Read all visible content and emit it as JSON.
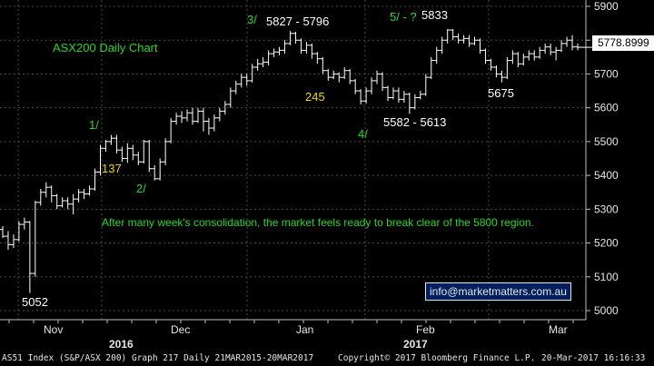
{
  "chart_data": {
    "type": "candlestick",
    "title": "ASX200 Daily Chart",
    "ylim": [
      4980,
      5920
    ],
    "y_ticks": [
      5000,
      5100,
      5200,
      5300,
      5400,
      5500,
      5600,
      5700,
      5800,
      5900
    ],
    "x_month_labels": [
      "Nov",
      "Dec",
      "Jan",
      "Feb",
      "Mar"
    ],
    "x_year_labels": [
      "2016",
      "2017"
    ],
    "last_price": "5778.8999",
    "line_color": "#ffffff",
    "background": "#000000",
    "bars": [
      [
        5240,
        5220,
        5215,
        5250
      ],
      [
        5220,
        5195,
        5180,
        5235
      ],
      [
        5195,
        5210,
        5185,
        5225
      ],
      [
        5210,
        5255,
        5205,
        5265
      ],
      [
        5255,
        5262,
        5240,
        5275
      ],
      [
        5262,
        5110,
        5052,
        5265
      ],
      [
        5110,
        5320,
        5100,
        5325
      ],
      [
        5320,
        5350,
        5310,
        5360
      ],
      [
        5350,
        5365,
        5335,
        5380
      ],
      [
        5365,
        5340,
        5320,
        5370
      ],
      [
        5340,
        5310,
        5300,
        5345
      ],
      [
        5310,
        5325,
        5305,
        5335
      ],
      [
        5325,
        5315,
        5300,
        5335
      ],
      [
        5315,
        5330,
        5285,
        5345
      ],
      [
        5330,
        5350,
        5320,
        5360
      ],
      [
        5350,
        5345,
        5330,
        5360
      ],
      [
        5345,
        5360,
        5340,
        5370
      ],
      [
        5360,
        5410,
        5355,
        5420
      ],
      [
        5410,
        5480,
        5400,
        5490
      ],
      [
        5480,
        5500,
        5470,
        5505
      ],
      [
        5500,
        5510,
        5490,
        5520
      ],
      [
        5510,
        5475,
        5465,
        5520
      ],
      [
        5475,
        5450,
        5440,
        5485
      ],
      [
        5450,
        5480,
        5437,
        5495
      ],
      [
        5480,
        5460,
        5445,
        5490
      ],
      [
        5460,
        5440,
        5430,
        5470
      ],
      [
        5440,
        5500,
        5435,
        5505
      ],
      [
        5500,
        5420,
        5410,
        5505
      ],
      [
        5420,
        5390,
        5385,
        5430
      ],
      [
        5390,
        5440,
        5385,
        5450
      ],
      [
        5440,
        5500,
        5430,
        5510
      ],
      [
        5500,
        5560,
        5495,
        5570
      ],
      [
        5560,
        5575,
        5550,
        5585
      ],
      [
        5575,
        5570,
        5555,
        5590
      ],
      [
        5570,
        5585,
        5560,
        5595
      ],
      [
        5585,
        5560,
        5550,
        5600
      ],
      [
        5560,
        5590,
        5555,
        5600
      ],
      [
        5590,
        5560,
        5530,
        5600
      ],
      [
        5560,
        5540,
        5520,
        5570
      ],
      [
        5540,
        5570,
        5530,
        5580
      ],
      [
        5570,
        5590,
        5560,
        5600
      ],
      [
        5590,
        5610,
        5580,
        5620
      ],
      [
        5610,
        5650,
        5600,
        5660
      ],
      [
        5650,
        5670,
        5640,
        5680
      ],
      [
        5670,
        5690,
        5660,
        5700
      ],
      [
        5690,
        5680,
        5665,
        5700
      ],
      [
        5680,
        5720,
        5675,
        5730
      ],
      [
        5720,
        5730,
        5710,
        5745
      ],
      [
        5730,
        5735,
        5720,
        5750
      ],
      [
        5735,
        5760,
        5725,
        5770
      ],
      [
        5760,
        5765,
        5750,
        5775
      ],
      [
        5765,
        5770,
        5755,
        5780
      ],
      [
        5770,
        5790,
        5760,
        5800
      ],
      [
        5790,
        5820,
        5785,
        5827
      ],
      [
        5820,
        5800,
        5790,
        5825
      ],
      [
        5800,
        5770,
        5760,
        5805
      ],
      [
        5770,
        5785,
        5760,
        5795
      ],
      [
        5785,
        5760,
        5745,
        5790
      ],
      [
        5760,
        5745,
        5730,
        5765
      ],
      [
        5745,
        5710,
        5700,
        5750
      ],
      [
        5710,
        5690,
        5680,
        5715
      ],
      [
        5690,
        5700,
        5685,
        5710
      ],
      [
        5700,
        5690,
        5675,
        5705
      ],
      [
        5690,
        5710,
        5685,
        5720
      ],
      [
        5710,
        5680,
        5670,
        5715
      ],
      [
        5680,
        5650,
        5640,
        5685
      ],
      [
        5650,
        5620,
        5610,
        5655
      ],
      [
        5620,
        5650,
        5612,
        5660
      ],
      [
        5650,
        5680,
        5640,
        5690
      ],
      [
        5680,
        5700,
        5670,
        5710
      ],
      [
        5700,
        5660,
        5650,
        5705
      ],
      [
        5660,
        5630,
        5620,
        5665
      ],
      [
        5630,
        5650,
        5625,
        5660
      ],
      [
        5650,
        5625,
        5615,
        5660
      ],
      [
        5625,
        5640,
        5615,
        5650
      ],
      [
        5640,
        5600,
        5582,
        5645
      ],
      [
        5600,
        5630,
        5595,
        5640
      ],
      [
        5630,
        5640,
        5625,
        5650
      ],
      [
        5640,
        5690,
        5635,
        5700
      ],
      [
        5690,
        5740,
        5685,
        5750
      ],
      [
        5740,
        5770,
        5730,
        5780
      ],
      [
        5770,
        5800,
        5760,
        5810
      ],
      [
        5800,
        5830,
        5790,
        5833
      ],
      [
        5830,
        5810,
        5800,
        5833
      ],
      [
        5810,
        5800,
        5790,
        5820
      ],
      [
        5800,
        5805,
        5790,
        5815
      ],
      [
        5805,
        5790,
        5780,
        5815
      ],
      [
        5790,
        5800,
        5785,
        5810
      ],
      [
        5800,
        5770,
        5760,
        5805
      ],
      [
        5770,
        5740,
        5730,
        5775
      ],
      [
        5740,
        5720,
        5710,
        5745
      ],
      [
        5720,
        5700,
        5690,
        5725
      ],
      [
        5700,
        5690,
        5675,
        5710
      ],
      [
        5690,
        5740,
        5685,
        5750
      ],
      [
        5740,
        5760,
        5730,
        5770
      ],
      [
        5760,
        5730,
        5720,
        5765
      ],
      [
        5730,
        5750,
        5725,
        5760
      ],
      [
        5750,
        5760,
        5740,
        5770
      ],
      [
        5760,
        5750,
        5740,
        5770
      ],
      [
        5750,
        5770,
        5745,
        5780
      ],
      [
        5770,
        5780,
        5760,
        5790
      ],
      [
        5780,
        5765,
        5755,
        5790
      ],
      [
        5765,
        5770,
        5740,
        5780
      ],
      [
        5770,
        5790,
        5765,
        5800
      ],
      [
        5790,
        5800,
        5780,
        5810
      ],
      [
        5800,
        5780,
        5770,
        5815
      ],
      [
        5780,
        5779,
        5770,
        5790
      ]
    ],
    "annotations": {
      "title": "ASX200 Daily Chart",
      "wave1": "1/",
      "wave2": "2/",
      "wave3": "3/",
      "wave4": "4/",
      "wave5": "5/ - ?",
      "wave137": "137",
      "wave245": "245",
      "low": "5052",
      "peak3": "5827 - 5796",
      "peak5": "5833",
      "low4": "5582 - 5613",
      "low5675": "5675",
      "comment": "After many week's consolidation, the market feels ready to break clear of the 5800 region."
    }
  },
  "email": "info@marketmatters.com.au",
  "footer": {
    "left": "AS51 Index (S&P/ASX 200) Graph 217  Daily 21MAR2015-20MAR2017",
    "mid": "Copyright© 2017 Bloomberg Finance L.P.",
    "right": "20-Mar-2017 16:16:33"
  }
}
